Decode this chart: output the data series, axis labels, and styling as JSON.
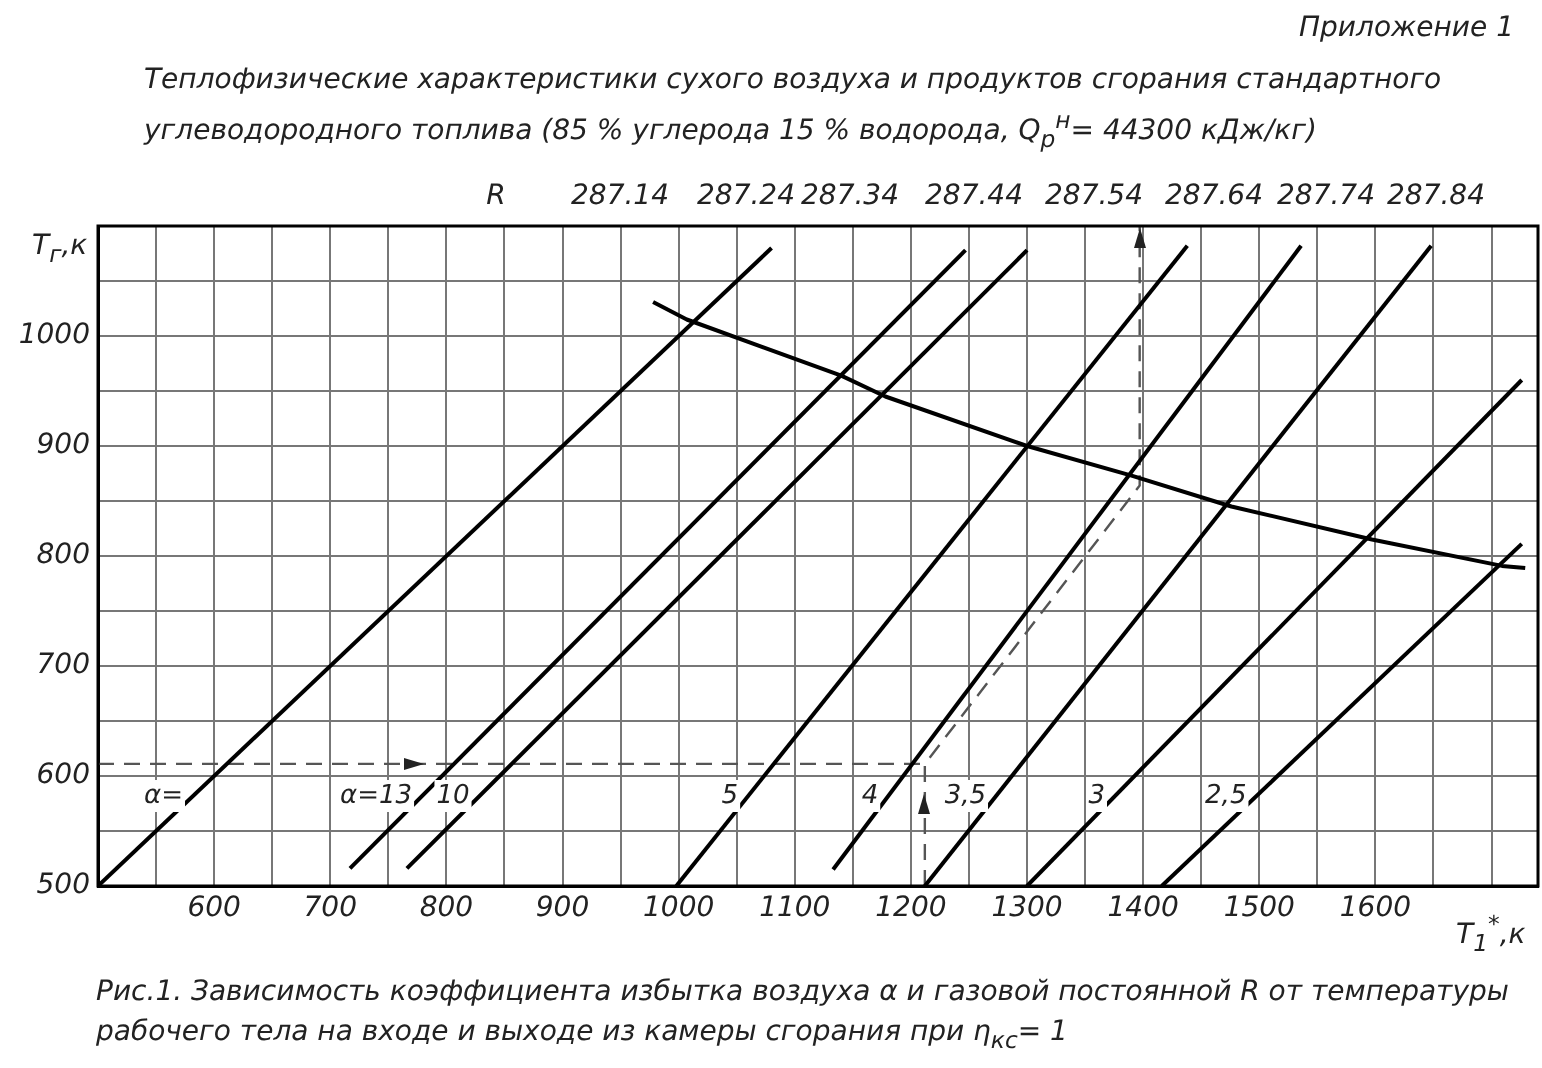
{
  "chart_data": {
    "type": "line",
    "title": "Теплофизические характеристики сухого воздуха и продуктов сгорания стандартного углеводородного топлива (85 % углерода 15 % водорода, Q$_{р}$$^{н}$= 44300 кДж/кг)",
    "xlabel": "T$_{1}$$^{*}$,к",
    "ylabel": "T$_{г}$,к",
    "annotations": [
      "Приложение 1",
      "Рис.1. Зависимость коэффициента избытка воздуха α и газовой постоянной R от температуры рабочего тела на входе и выходе из камеры сгорания при η$_{кс}$= 1",
      "R",
      "287.14",
      "287.24",
      "287.34",
      "287.44",
      "287.54",
      "287.64",
      "287.74",
      "287.84"
    ],
    "xlim": [
      500,
      1740
    ],
    "ylim": [
      500,
      1100
    ],
    "xticks": [
      {
        "value": 550,
        "label": null
      },
      600,
      {
        "value": 650,
        "label": null
      },
      700,
      {
        "value": 750,
        "label": null
      },
      800,
      {
        "value": 850,
        "label": null
      },
      900,
      {
        "value": 950,
        "label": null
      },
      1000,
      {
        "value": 1050,
        "label": null
      },
      1100,
      {
        "value": 1150,
        "label": null
      },
      1200,
      {
        "value": 1250,
        "label": null
      },
      1300,
      {
        "value": 1350,
        "label": null
      },
      1400,
      {
        "value": 1450,
        "label": null
      },
      1500,
      {
        "value": 1550,
        "label": null
      },
      1600,
      {
        "value": 1650,
        "label": null
      },
      {
        "value": 1700,
        "label": null
      }
    ],
    "yticks": [
      500,
      {
        "value": 550,
        "label": null
      },
      600,
      {
        "value": 650,
        "label": null
      },
      700,
      {
        "value": 750,
        "label": null
      },
      800,
      {
        "value": 850,
        "label": null
      },
      900,
      {
        "value": 950,
        "label": null
      },
      1000,
      {
        "value": 1050,
        "label": null
      }
    ],
    "grid": true,
    "legend": false,
    "marker": "none",
    "series": [
      {
        "name": "α=",
        "color": "#000000",
        "x": [
          500,
          1080
        ],
        "values": [
          500,
          1080
        ]
      },
      {
        "name": "α=13",
        "color": "#000000",
        "x": [
          717,
          1247
        ],
        "values": [
          516,
          1078
        ]
      },
      {
        "name": "10",
        "color": "#000000",
        "x": [
          766,
          1300
        ],
        "values": [
          516,
          1078
        ]
      },
      {
        "name": "5",
        "color": "#000000",
        "x": [
          998,
          1438
        ],
        "values": [
          500,
          1082
        ]
      },
      {
        "name": "4",
        "color": "#000000",
        "x": [
          1133,
          1536
        ],
        "values": [
          515,
          1082
        ]
      },
      {
        "name": "3,5",
        "color": "#000000",
        "x": [
          1212,
          1648
        ],
        "values": [
          500,
          1082
        ]
      },
      {
        "name": "3",
        "color": "#000000",
        "x": [
          1300,
          1726
        ],
        "values": [
          500,
          960
        ]
      },
      {
        "name": "2,5",
        "color": "#000000",
        "x": [
          1416,
          1726
        ],
        "values": [
          500,
          811
        ]
      },
      {
        "color": "#000000",
        "x": [
          978,
          1007,
          1140,
          1178,
          1300,
          1390,
          1476,
          1597,
          1709,
          1729
        ],
        "values": [
          1031,
          1015,
          964,
          945,
          900,
          873,
          845,
          815,
          791,
          789
        ]
      },
      {
        "color": "#555555",
        "line_style": "dashed",
        "x": [
          500,
          1212
        ],
        "values": [
          611,
          611
        ]
      },
      {
        "color": "#555555",
        "line_style": "dashed",
        "x": [
          1212,
          1212,
          1397,
          1397
        ],
        "values": [
          500,
          611,
          864,
          1100
        ]
      }
    ]
  }
}
